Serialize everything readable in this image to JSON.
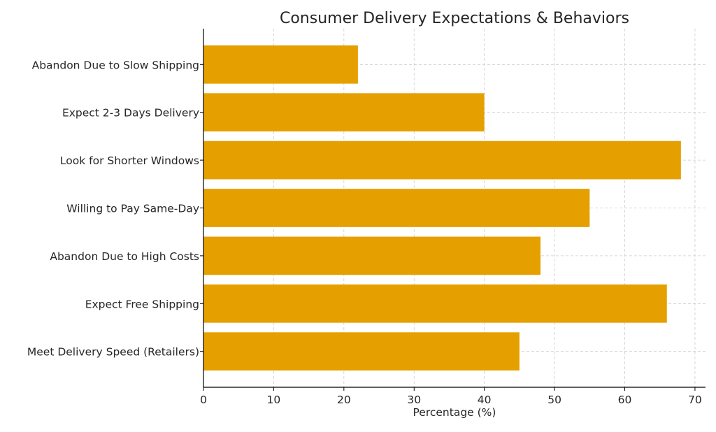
{
  "chart_data": {
    "type": "bar",
    "orientation": "horizontal",
    "title": "Consumer Delivery Expectations & Behaviors",
    "xlabel": "Percentage (%)",
    "ylabel": "",
    "xlim": [
      0,
      71.5
    ],
    "xticks": [
      0,
      10,
      20,
      30,
      40,
      50,
      60,
      70
    ],
    "grid": true,
    "bar_color": "#E5A000",
    "categories": [
      "Meet Delivery Speed (Retailers)",
      "Expect Free Shipping",
      "Abandon Due to High Costs",
      "Willing to Pay Same-Day",
      "Look for Shorter Windows",
      "Expect 2-3 Days Delivery",
      "Abandon Due to Slow Shipping"
    ],
    "values": [
      45,
      66,
      48,
      55,
      68,
      40,
      22
    ]
  }
}
